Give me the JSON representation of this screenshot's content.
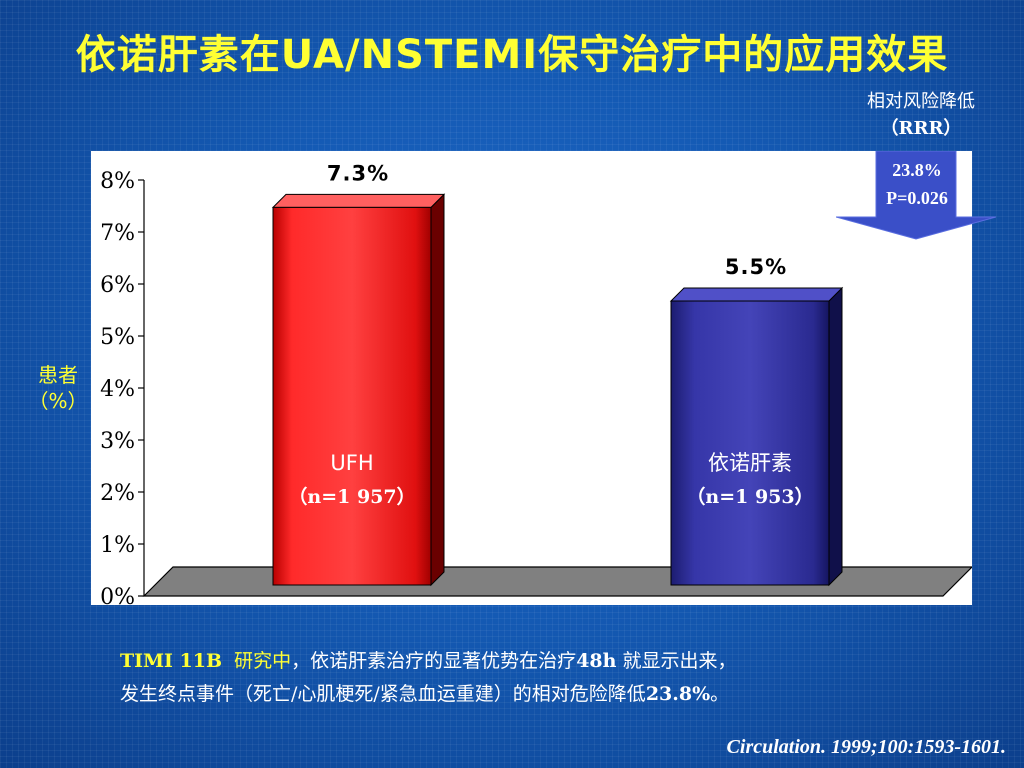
{
  "slide": {
    "title": "依诺肝素在UA/NSTEMI保守治疗中的应用效果",
    "rrr_label": "相对风险降低",
    "rrr_abbr": "（RRR）",
    "arrow_value": "23.8%",
    "arrow_p": "P=0.026",
    "ylabel_line1": "患者",
    "ylabel_line2": "（%）",
    "desc_study": "TIMI 11B",
    "desc_study2": "研究中",
    "desc_line1_rest": "，依诺肝素治疗的显著优势在治疗",
    "desc_48h": "48h",
    "desc_line1_end": " 就显示出来，",
    "desc_line2": "发生终点事件（死亡/心肌梗死/紧急血运重建）的相对危险降低",
    "desc_rrr": "23.8%",
    "desc_end": "。",
    "citation": "Circulation. 1999;100:1593-1601.",
    "colors": {
      "background": "#1560bd",
      "title": "#ffff33",
      "ufh_bar": "#ff2020",
      "enox_bar": "#2a2a9a",
      "arrow": "#3a4fc8"
    }
  },
  "chart_data": {
    "type": "bar",
    "categories": [
      "UFH",
      "依诺肝素"
    ],
    "category_sublabels": [
      "（n=1 957）",
      "（n=1 953）"
    ],
    "values": [
      7.3,
      5.5
    ],
    "data_labels": [
      "7.3%",
      "5.5%"
    ],
    "ylim": [
      0,
      8
    ],
    "yticks": [
      "0%",
      "1%",
      "2%",
      "3%",
      "4%",
      "5%",
      "6%",
      "7%",
      "8%"
    ],
    "ylabel": "患者（%）",
    "grid": false
  }
}
